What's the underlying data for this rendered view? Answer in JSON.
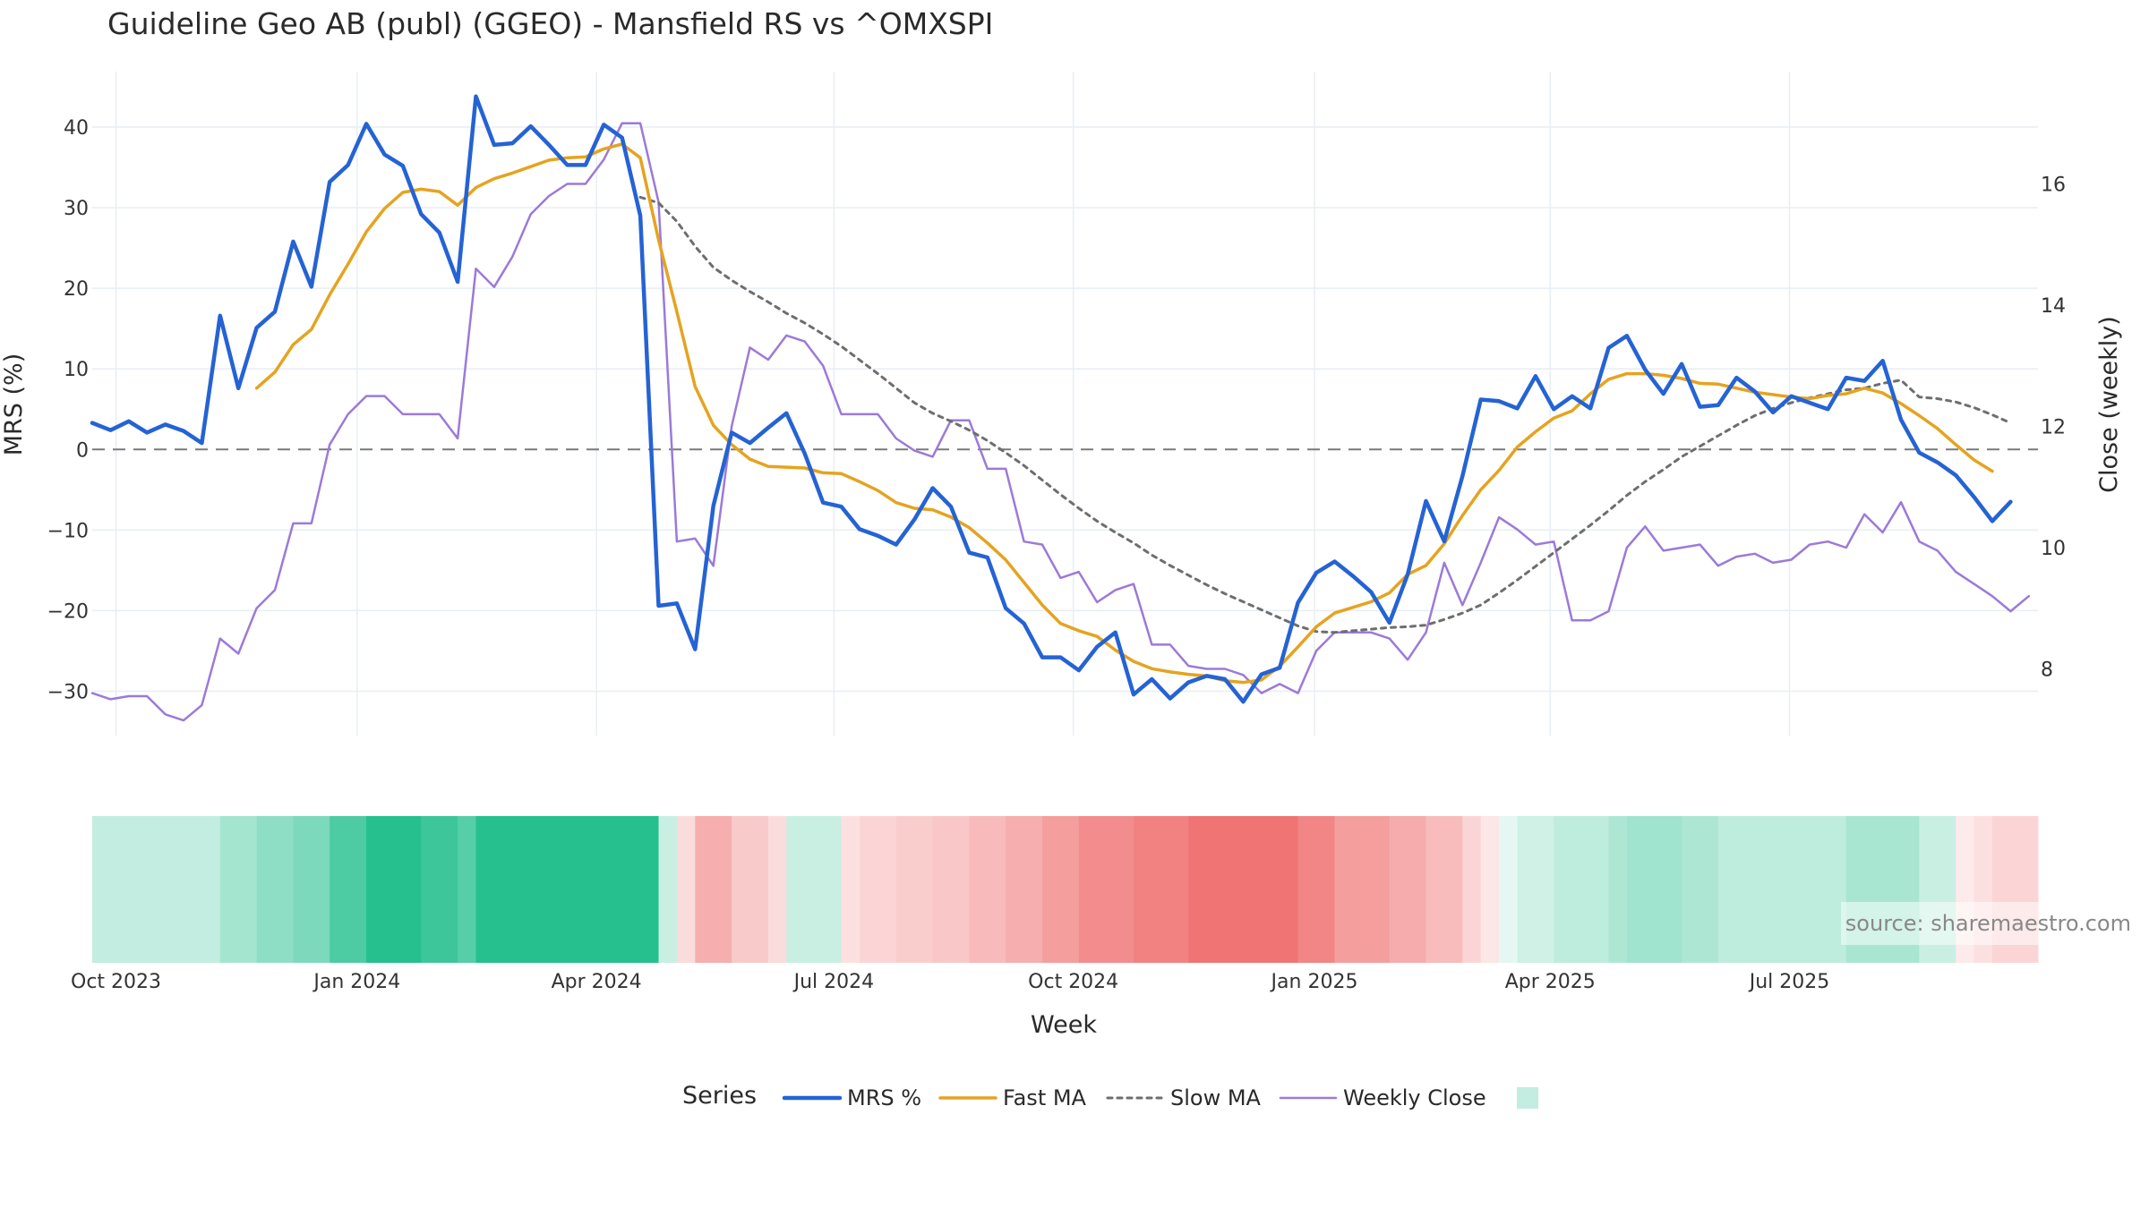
{
  "chart_data": {
    "type": "line",
    "title": "Guideline Geo AB (publ) (GGEO) - Mansfield RS vs ^OMXSPI",
    "xlabel": "Week",
    "ylabel_left": "MRS (%)",
    "ylabel_right": "Close (weekly)",
    "y_left_ticks": [
      40,
      30,
      20,
      10,
      0,
      -10,
      -20,
      -30
    ],
    "y_left_range": [
      -35.5,
      48
    ],
    "y_right_ticks": [
      16,
      14,
      12,
      10,
      8
    ],
    "y_right_range": [
      6.9,
      18
    ],
    "x_range": [
      0,
      106.5
    ],
    "x_ticks": [
      {
        "label": "Oct 2023",
        "week": 1.3
      },
      {
        "label": "Jan 2024",
        "week": 14.5
      },
      {
        "label": "Apr 2024",
        "week": 27.6
      },
      {
        "label": "Jul 2024",
        "week": 40.6
      },
      {
        "label": "Oct 2024",
        "week": 53.7
      },
      {
        "label": "Jan 2025",
        "week": 66.9
      },
      {
        "label": "Apr 2025",
        "week": 79.8
      },
      {
        "label": "Jul 2025",
        "week": 92.9
      }
    ],
    "grid": true,
    "zero_line": "dashed",
    "legend": {
      "title": "Series",
      "placement": "bottom"
    },
    "source_note": "source: sharemaestro.com",
    "colors": {
      "mrs": "#2563d4",
      "fast": "#e5a320",
      "slow": "#6e6e6e",
      "close": "#9b7ad9",
      "positive": "#26c08f",
      "negative": "#f07474"
    },
    "series": [
      {
        "name": "MRS %",
        "key": "mrs",
        "axis": "left",
        "start": 0,
        "values": [
          3.3,
          2.4,
          3.5,
          2.1,
          3.1,
          2.3,
          0.8,
          16.6,
          7.6,
          15.1,
          17.1,
          25.8,
          20.2,
          33.2,
          35.3,
          40.4,
          36.6,
          35.2,
          29.2,
          26.9,
          20.8,
          43.8,
          37.8,
          38.0,
          40.1,
          37.8,
          35.3,
          35.3,
          40.3,
          38.7,
          29.0,
          -19.4,
          -19.1,
          -24.8,
          -7.0,
          2.1,
          0.8,
          2.7,
          4.5,
          -0.5,
          -6.6,
          -7.1,
          -9.9,
          -10.7,
          -11.8,
          -8.7,
          -4.8,
          -7.1,
          -12.8,
          -13.4,
          -19.7,
          -21.6,
          -25.8,
          -25.8,
          -27.4,
          -24.5,
          -22.7,
          -30.4,
          -28.5,
          -30.9,
          -28.9,
          -28.1,
          -28.5,
          -31.3,
          -27.9,
          -27.1,
          -19.0,
          -15.3,
          -13.9,
          -15.7,
          -17.7,
          -21.5,
          -15.5,
          -6.4,
          -11.4,
          -3.3,
          6.2,
          6.0,
          5.1,
          9.1,
          5.0,
          6.6,
          5.1,
          12.6,
          14.1,
          9.9,
          6.9,
          10.6,
          5.3,
          5.5,
          8.9,
          7.2,
          4.6,
          6.6,
          5.8,
          5.0,
          8.9,
          8.5,
          11.0,
          3.7,
          -0.4,
          -1.6,
          -3.2,
          -5.9,
          -8.9,
          -6.5
        ]
      },
      {
        "name": "Fast MA",
        "key": "fast",
        "axis": "left",
        "start": 9,
        "values": [
          7.6,
          9.6,
          13.0,
          14.9,
          19.2,
          23.0,
          27.0,
          29.9,
          31.9,
          32.3,
          32.0,
          30.3,
          32.5,
          33.6,
          34.3,
          35.1,
          35.9,
          36.2,
          36.3,
          37.3,
          37.9,
          36.2,
          26.0,
          17.1,
          7.8,
          3.0,
          0.6,
          -1.2,
          -2.1,
          -2.2,
          -2.3,
          -2.9,
          -3.0,
          -4.0,
          -5.1,
          -6.6,
          -7.3,
          -7.5,
          -8.4,
          -9.7,
          -11.6,
          -13.7,
          -16.5,
          -19.3,
          -21.6,
          -22.5,
          -23.2,
          -24.9,
          -26.3,
          -27.2,
          -27.6,
          -27.9,
          -28.1,
          -28.7,
          -28.9,
          -28.6,
          -26.9,
          -24.5,
          -22.0,
          -20.3,
          -19.6,
          -18.9,
          -17.8,
          -15.5,
          -14.4,
          -11.7,
          -8.2,
          -5.0,
          -2.6,
          0.3,
          2.2,
          3.9,
          4.8,
          6.9,
          8.7,
          9.4,
          9.4,
          9.2,
          8.8,
          8.2,
          8.1,
          7.6,
          7.1,
          6.8,
          6.5,
          6.3,
          6.7,
          6.9,
          7.6,
          7.0,
          5.7,
          4.2,
          2.6,
          0.6,
          -1.3,
          -2.7
        ]
      },
      {
        "name": "Slow MA",
        "key": "slow",
        "axis": "left",
        "start": 30,
        "values": [
          31.3,
          30.6,
          28.3,
          25.2,
          22.6,
          21.0,
          19.6,
          18.3,
          16.9,
          15.7,
          14.3,
          12.8,
          11.1,
          9.4,
          7.6,
          5.8,
          4.5,
          3.5,
          2.4,
          1.1,
          -0.4,
          -2.0,
          -3.8,
          -5.6,
          -7.3,
          -8.9,
          -10.3,
          -11.6,
          -13.1,
          -14.4,
          -15.6,
          -16.8,
          -17.9,
          -18.9,
          -19.9,
          -20.9,
          -21.9,
          -22.6,
          -22.7,
          -22.5,
          -22.3,
          -22.1,
          -22.0,
          -21.8,
          -21.1,
          -20.3,
          -19.3,
          -17.8,
          -16.2,
          -14.5,
          -12.8,
          -11.1,
          -9.4,
          -7.6,
          -5.7,
          -4.0,
          -2.5,
          -0.9,
          0.4,
          1.7,
          3.0,
          4.2,
          5.1,
          5.8,
          6.4,
          6.9,
          7.4,
          7.6,
          8.2,
          8.6,
          6.5,
          6.3,
          5.9,
          5.2,
          4.3,
          3.3
        ]
      },
      {
        "name": "Weekly Close",
        "key": "close",
        "axis": "right",
        "start": 0,
        "values": [
          7.6,
          7.5,
          7.55,
          7.55,
          7.25,
          7.15,
          7.4,
          8.5,
          8.25,
          9.0,
          9.3,
          10.4,
          10.4,
          11.7,
          12.2,
          12.5,
          12.5,
          12.2,
          12.2,
          12.2,
          11.8,
          14.6,
          14.3,
          14.8,
          15.5,
          15.8,
          16.0,
          16.0,
          16.4,
          17.0,
          17.0,
          15.7,
          10.1,
          10.15,
          9.7,
          12.0,
          13.3,
          13.1,
          13.5,
          13.4,
          13.0,
          12.2,
          12.2,
          12.2,
          11.8,
          11.6,
          11.5,
          12.1,
          12.1,
          11.3,
          11.3,
          10.1,
          10.05,
          9.5,
          9.6,
          9.1,
          9.3,
          9.4,
          8.4,
          8.4,
          8.05,
          8.0,
          8.0,
          7.9,
          7.6,
          7.75,
          7.6,
          8.3,
          8.6,
          8.6,
          8.6,
          8.5,
          8.15,
          8.6,
          9.75,
          9.05,
          9.75,
          10.5,
          10.3,
          10.05,
          10.1,
          8.8,
          8.8,
          8.95,
          10.0,
          10.35,
          9.95,
          10.0,
          10.05,
          9.7,
          9.85,
          9.9,
          9.75,
          9.8,
          10.05,
          10.1,
          10.0,
          10.55,
          10.25,
          10.75,
          10.1,
          9.95,
          9.6,
          9.4,
          9.2,
          8.95,
          9.2
        ]
      }
    ],
    "heatmap_strip": {
      "label": "Series",
      "cells": [
        {
          "from": 0,
          "to": 7,
          "tone": 0.28
        },
        {
          "from": 7,
          "to": 9,
          "tone": 0.42
        },
        {
          "from": 9,
          "to": 11,
          "tone": 0.52
        },
        {
          "from": 11,
          "to": 13,
          "tone": 0.6
        },
        {
          "from": 13,
          "to": 15,
          "tone": 0.82
        },
        {
          "from": 15,
          "to": 18,
          "tone": 1.0
        },
        {
          "from": 18,
          "to": 20,
          "tone": 0.9
        },
        {
          "from": 20,
          "to": 21,
          "tone": 0.78
        },
        {
          "from": 21,
          "to": 31,
          "tone": 1.0
        },
        {
          "from": 31,
          "to": 32,
          "tone": 0.25
        },
        {
          "from": 32,
          "to": 33,
          "tone": -0.25
        },
        {
          "from": 33,
          "to": 35,
          "tone": -0.58
        },
        {
          "from": 35,
          "to": 37,
          "tone": -0.38
        },
        {
          "from": 37,
          "to": 38,
          "tone": -0.25
        },
        {
          "from": 38,
          "to": 41,
          "tone": 0.25
        },
        {
          "from": 41,
          "to": 42,
          "tone": -0.22
        },
        {
          "from": 42,
          "to": 44,
          "tone": -0.3
        },
        {
          "from": 44,
          "to": 46,
          "tone": -0.36
        },
        {
          "from": 46,
          "to": 48,
          "tone": -0.4
        },
        {
          "from": 48,
          "to": 50,
          "tone": -0.5
        },
        {
          "from": 50,
          "to": 52,
          "tone": -0.58
        },
        {
          "from": 52,
          "to": 54,
          "tone": -0.7
        },
        {
          "from": 54,
          "to": 57,
          "tone": -0.82
        },
        {
          "from": 57,
          "to": 60,
          "tone": -0.9
        },
        {
          "from": 60,
          "to": 66,
          "tone": -1.0
        },
        {
          "from": 66,
          "to": 68,
          "tone": -0.88
        },
        {
          "from": 68,
          "to": 71,
          "tone": -0.7
        },
        {
          "from": 71,
          "to": 73,
          "tone": -0.6
        },
        {
          "from": 73,
          "to": 75,
          "tone": -0.48
        },
        {
          "from": 75,
          "to": 76,
          "tone": -0.3
        },
        {
          "from": 76,
          "to": 77,
          "tone": -0.18
        },
        {
          "from": 77,
          "to": 78,
          "tone": 0.12
        },
        {
          "from": 78,
          "to": 80,
          "tone": 0.22
        },
        {
          "from": 80,
          "to": 83,
          "tone": 0.3
        },
        {
          "from": 83,
          "to": 84,
          "tone": 0.38
        },
        {
          "from": 84,
          "to": 87,
          "tone": 0.44
        },
        {
          "from": 87,
          "to": 89,
          "tone": 0.38
        },
        {
          "from": 89,
          "to": 92,
          "tone": 0.3
        },
        {
          "from": 92,
          "to": 96,
          "tone": 0.3
        },
        {
          "from": 96,
          "to": 100,
          "tone": 0.4
        },
        {
          "from": 100,
          "to": 102,
          "tone": 0.25
        },
        {
          "from": 102,
          "to": 103,
          "tone": -0.15
        },
        {
          "from": 103,
          "to": 104,
          "tone": -0.22
        },
        {
          "from": 104,
          "to": 106.5,
          "tone": -0.3
        }
      ]
    }
  }
}
